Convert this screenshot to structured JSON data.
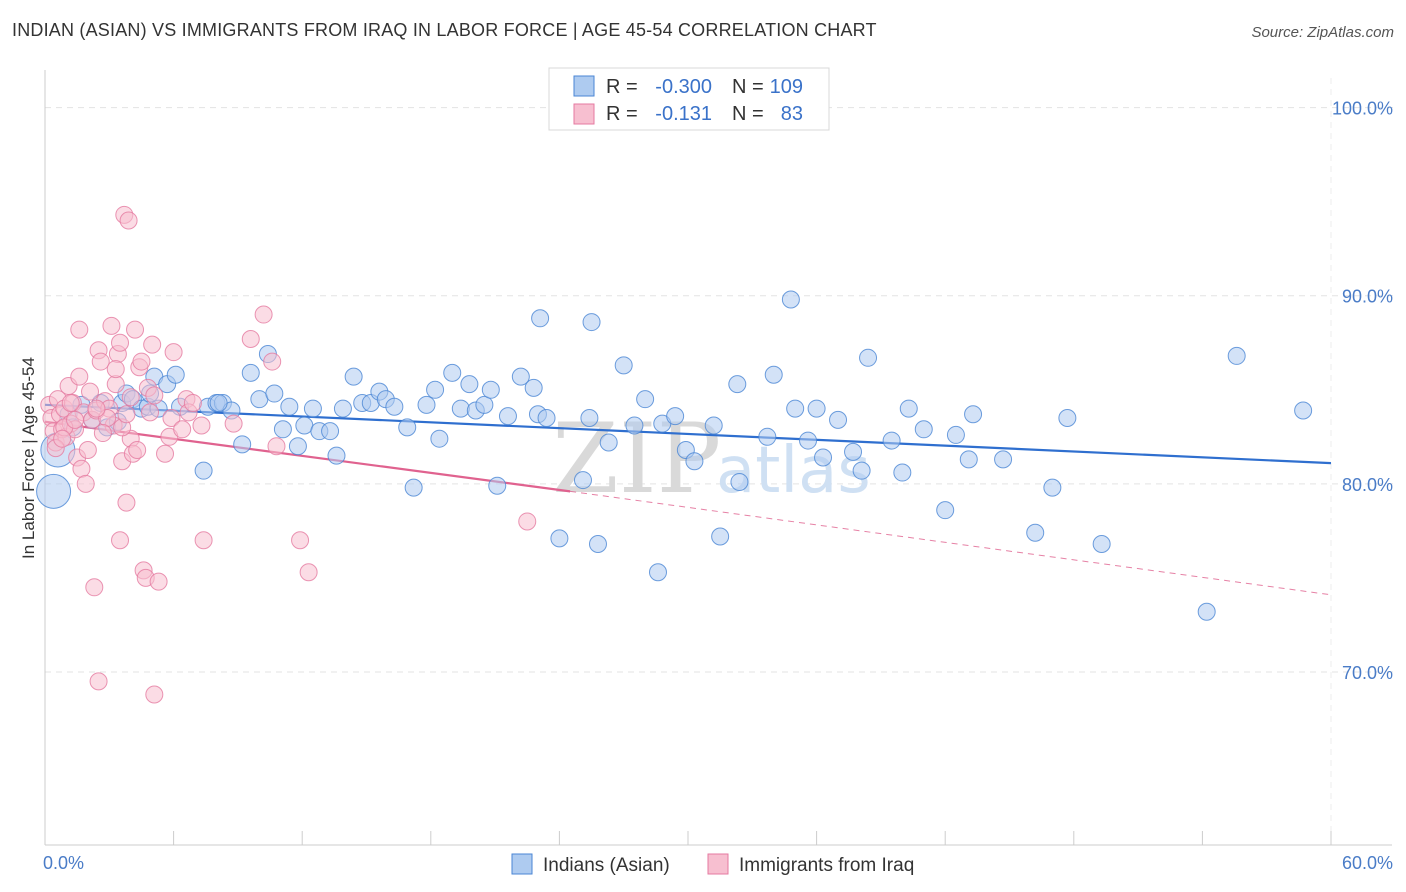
{
  "title": "INDIAN (ASIAN) VS IMMIGRANTS FROM IRAQ IN LABOR FORCE | AGE 45-54 CORRELATION CHART",
  "source": "Source: ZipAtlas.com",
  "watermark": {
    "zip": "ZIP",
    "atlas": "atlas"
  },
  "colors": {
    "blue_fill": "#aecbf0",
    "blue_stroke": "#4a86d4",
    "blue_line": "#2f6fcf",
    "pink_fill": "#f7bfd0",
    "pink_stroke": "#e57aa0",
    "pink_line": "#e0628f",
    "tick_text": "#4a7cc7",
    "grid": "#e3e3e3"
  },
  "legend": {
    "rows": [
      {
        "r_label": "R =",
        "r_value": "-0.300",
        "n_label": "N =",
        "n_value": "109",
        "swatch": "blue"
      },
      {
        "r_label": "R =",
        "r_value": "-0.131",
        "n_label": "N =",
        "n_value": "83",
        "swatch": "pink"
      }
    ]
  },
  "chart_data": {
    "type": "scatter",
    "title": "INDIAN (ASIAN) VS IMMIGRANTS FROM IRAQ IN LABOR FORCE | AGE 45-54 CORRELATION CHART",
    "xlabel": "",
    "ylabel": "In Labor Force | Age 45-54",
    "xlim": [
      0,
      60
    ],
    "ylim": [
      60.8,
      102.0
    ],
    "x_tick_labels": [
      {
        "value": 0,
        "label": "0.0%"
      },
      {
        "value": 60,
        "label": "60.0%"
      }
    ],
    "y_ticks": [
      {
        "value": 100,
        "label": "100.0%"
      },
      {
        "value": 90,
        "label": "90.0%"
      },
      {
        "value": 80,
        "label": "80.0%"
      },
      {
        "value": 70,
        "label": "70.0%"
      }
    ],
    "grid": true,
    "legend_position": "top-center",
    "series": [
      {
        "name": "Indians (Asian)",
        "color": "blue",
        "r": -0.3,
        "n": 109,
        "trend": {
          "x": [
            0,
            60
          ],
          "y": [
            84.2,
            81.1
          ],
          "dashed_x": null
        },
        "points": [
          [
            0.4,
            79.6,
            1
          ],
          [
            0.6,
            81.8,
            1
          ],
          [
            1.1,
            83.7,
            0
          ],
          [
            1.3,
            83.0,
            0
          ],
          [
            1.7,
            84.2,
            0
          ],
          [
            2.2,
            83.4,
            0
          ],
          [
            2.6,
            84.3,
            0
          ],
          [
            2.9,
            83.0,
            0
          ],
          [
            3.4,
            83.3,
            0
          ],
          [
            3.6,
            84.3,
            0
          ],
          [
            3.8,
            84.8,
            0
          ],
          [
            4.1,
            84.5,
            0
          ],
          [
            4.5,
            84.0,
            0
          ],
          [
            4.8,
            84.1,
            0
          ],
          [
            4.9,
            84.8,
            0
          ],
          [
            5.1,
            85.7,
            0
          ],
          [
            5.3,
            84.0,
            0
          ],
          [
            5.7,
            85.3,
            0
          ],
          [
            6.1,
            85.8,
            0
          ],
          [
            6.3,
            84.1,
            0
          ],
          [
            7.4,
            80.7,
            0
          ],
          [
            7.6,
            84.1,
            0
          ],
          [
            8.0,
            84.3,
            0
          ],
          [
            8.3,
            84.3,
            0
          ],
          [
            8.7,
            83.9,
            0
          ],
          [
            9.2,
            82.1,
            0
          ],
          [
            9.6,
            85.9,
            0
          ],
          [
            10.0,
            84.5,
            0
          ],
          [
            10.4,
            86.9,
            0
          ],
          [
            10.7,
            84.8,
            0
          ],
          [
            11.1,
            82.9,
            0
          ],
          [
            11.4,
            84.1,
            0
          ],
          [
            11.8,
            82.0,
            0
          ],
          [
            12.1,
            83.1,
            0
          ],
          [
            12.5,
            84.0,
            0
          ],
          [
            12.8,
            82.8,
            0
          ],
          [
            13.3,
            82.8,
            0
          ],
          [
            13.6,
            81.5,
            0
          ],
          [
            13.9,
            84.0,
            0
          ],
          [
            14.4,
            85.7,
            0
          ],
          [
            14.8,
            84.3,
            0
          ],
          [
            15.2,
            84.3,
            0
          ],
          [
            15.6,
            84.9,
            0
          ],
          [
            15.9,
            84.5,
            0
          ],
          [
            16.3,
            84.1,
            0
          ],
          [
            16.9,
            83.0,
            0
          ],
          [
            17.2,
            79.8,
            0
          ],
          [
            17.8,
            84.2,
            0
          ],
          [
            18.2,
            85.0,
            0
          ],
          [
            18.4,
            82.4,
            0
          ],
          [
            19.0,
            85.9,
            0
          ],
          [
            19.4,
            84.0,
            0
          ],
          [
            19.8,
            85.3,
            0
          ],
          [
            20.1,
            83.9,
            0
          ],
          [
            20.5,
            84.2,
            0
          ],
          [
            20.8,
            85.0,
            0
          ],
          [
            21.1,
            79.9,
            0
          ],
          [
            21.6,
            83.6,
            0
          ],
          [
            22.2,
            85.7,
            0
          ],
          [
            22.8,
            85.1,
            0
          ],
          [
            23.0,
            83.7,
            0
          ],
          [
            23.4,
            83.5,
            0
          ],
          [
            24.0,
            77.1,
            0
          ],
          [
            25.1,
            80.2,
            0
          ],
          [
            25.4,
            83.5,
            0
          ],
          [
            25.8,
            76.8,
            0
          ],
          [
            26.3,
            82.2,
            0
          ],
          [
            27.0,
            86.3,
            0
          ],
          [
            27.5,
            83.1,
            0
          ],
          [
            28.0,
            84.5,
            0
          ],
          [
            28.6,
            75.3,
            0
          ],
          [
            28.8,
            83.2,
            0
          ],
          [
            29.4,
            83.6,
            0
          ],
          [
            29.9,
            81.8,
            0
          ],
          [
            30.3,
            81.2,
            0
          ],
          [
            31.2,
            83.1,
            0
          ],
          [
            31.5,
            77.2,
            0
          ],
          [
            32.3,
            85.3,
            0
          ],
          [
            32.4,
            80.1,
            0
          ],
          [
            33.7,
            82.5,
            0
          ],
          [
            34.0,
            85.8,
            0
          ],
          [
            35.0,
            84.0,
            0
          ],
          [
            35.6,
            82.3,
            0
          ],
          [
            36.0,
            84.0,
            0
          ],
          [
            36.3,
            81.4,
            0
          ],
          [
            37.0,
            83.4,
            0
          ],
          [
            37.7,
            81.7,
            0
          ],
          [
            38.1,
            80.7,
            0
          ],
          [
            38.4,
            86.7,
            0
          ],
          [
            39.5,
            82.3,
            0
          ],
          [
            40.0,
            80.6,
            0
          ],
          [
            40.3,
            84.0,
            0
          ],
          [
            41.0,
            82.9,
            0
          ],
          [
            42.0,
            78.6,
            0
          ],
          [
            42.5,
            82.6,
            0
          ],
          [
            43.1,
            81.3,
            0
          ],
          [
            43.3,
            83.7,
            0
          ],
          [
            44.7,
            81.3,
            0
          ],
          [
            46.2,
            77.4,
            0
          ],
          [
            47.0,
            79.8,
            0
          ],
          [
            47.7,
            83.5,
            0
          ],
          [
            49.3,
            76.8,
            0
          ],
          [
            54.2,
            73.2,
            0
          ],
          [
            55.6,
            86.8,
            0
          ],
          [
            58.7,
            83.9,
            0
          ],
          [
            34.8,
            89.8,
            0
          ],
          [
            23.1,
            88.8,
            0
          ],
          [
            25.5,
            88.6,
            0
          ],
          [
            8.1,
            84.3,
            0
          ]
        ]
      },
      {
        "name": "Immigrants from Iraq",
        "color": "pink",
        "r": -0.131,
        "n": 83,
        "trend": {
          "x": [
            0,
            24.5
          ],
          "y": [
            83.3,
            79.6
          ],
          "dashed_x": [
            24.5,
            60
          ],
          "dashed_y": [
            79.6,
            74.1
          ]
        },
        "points": [
          [
            0.2,
            84.2,
            0
          ],
          [
            0.3,
            83.5,
            0
          ],
          [
            0.4,
            82.8,
            0
          ],
          [
            0.5,
            82.2,
            0
          ],
          [
            0.6,
            84.5,
            0
          ],
          [
            0.7,
            83.7,
            0
          ],
          [
            0.8,
            82.9,
            0
          ],
          [
            0.9,
            84.0,
            0
          ],
          [
            1.0,
            82.5,
            0
          ],
          [
            1.1,
            85.2,
            0
          ],
          [
            1.2,
            83.2,
            0
          ],
          [
            1.3,
            84.3,
            0
          ],
          [
            1.4,
            82.9,
            0
          ],
          [
            1.5,
            81.4,
            0
          ],
          [
            1.6,
            85.7,
            0
          ],
          [
            1.7,
            80.8,
            0
          ],
          [
            1.8,
            83.8,
            0
          ],
          [
            1.9,
            80.0,
            0
          ],
          [
            2.0,
            81.8,
            0
          ],
          [
            2.1,
            84.9,
            0
          ],
          [
            2.2,
            83.4,
            0
          ],
          [
            2.3,
            74.5,
            0
          ],
          [
            2.4,
            83.9,
            0
          ],
          [
            2.5,
            87.1,
            0
          ],
          [
            2.6,
            86.5,
            0
          ],
          [
            2.8,
            84.4,
            0
          ],
          [
            3.0,
            84.0,
            0
          ],
          [
            3.1,
            88.4,
            0
          ],
          [
            3.2,
            83.1,
            0
          ],
          [
            3.3,
            85.3,
            0
          ],
          [
            3.4,
            86.9,
            0
          ],
          [
            3.5,
            87.5,
            0
          ],
          [
            3.6,
            81.2,
            0
          ],
          [
            3.7,
            94.3,
            0
          ],
          [
            3.8,
            79.0,
            0
          ],
          [
            3.9,
            94.0,
            0
          ],
          [
            4.0,
            82.4,
            0
          ],
          [
            4.1,
            81.6,
            0
          ],
          [
            4.2,
            88.2,
            0
          ],
          [
            4.3,
            81.8,
            0
          ],
          [
            4.4,
            86.2,
            0
          ],
          [
            4.5,
            86.5,
            0
          ],
          [
            4.6,
            75.4,
            0
          ],
          [
            4.7,
            75.0,
            0
          ],
          [
            4.8,
            85.1,
            0
          ],
          [
            4.9,
            83.8,
            0
          ],
          [
            5.0,
            87.4,
            0
          ],
          [
            5.1,
            84.7,
            0
          ],
          [
            5.3,
            74.8,
            0
          ],
          [
            5.6,
            81.6,
            0
          ],
          [
            5.8,
            82.5,
            0
          ],
          [
            6.0,
            87.0,
            0
          ],
          [
            6.6,
            84.5,
            0
          ],
          [
            6.7,
            83.8,
            0
          ],
          [
            7.3,
            83.1,
            0
          ],
          [
            7.4,
            77.0,
            0
          ],
          [
            9.6,
            87.7,
            0
          ],
          [
            10.2,
            89.0,
            0
          ],
          [
            10.6,
            86.5,
            0
          ],
          [
            10.8,
            82.0,
            0
          ],
          [
            11.9,
            77.0,
            0
          ],
          [
            12.3,
            75.3,
            0
          ],
          [
            3.6,
            83.0,
            0
          ],
          [
            2.9,
            83.5,
            0
          ],
          [
            1.2,
            84.3,
            0
          ],
          [
            0.9,
            83.0,
            0
          ],
          [
            0.5,
            81.9,
            0
          ],
          [
            2.7,
            82.7,
            0
          ],
          [
            4.0,
            84.6,
            0
          ],
          [
            5.9,
            83.5,
            0
          ],
          [
            6.9,
            84.3,
            0
          ],
          [
            8.8,
            83.2,
            0
          ],
          [
            3.5,
            77.0,
            0
          ],
          [
            2.5,
            69.5,
            0
          ],
          [
            5.1,
            68.8,
            0
          ],
          [
            22.5,
            78.0,
            0
          ],
          [
            3.8,
            83.7,
            0
          ],
          [
            1.6,
            88.2,
            0
          ],
          [
            0.8,
            82.4,
            0
          ],
          [
            2.4,
            84.0,
            0
          ],
          [
            3.3,
            86.1,
            0
          ],
          [
            1.4,
            83.4,
            0
          ],
          [
            6.4,
            82.9,
            0
          ]
        ]
      }
    ]
  },
  "bottom_legend": {
    "items": [
      {
        "label": "Indians (Asian)",
        "swatch": "blue"
      },
      {
        "label": "Immigrants from Iraq",
        "swatch": "pink"
      }
    ]
  }
}
